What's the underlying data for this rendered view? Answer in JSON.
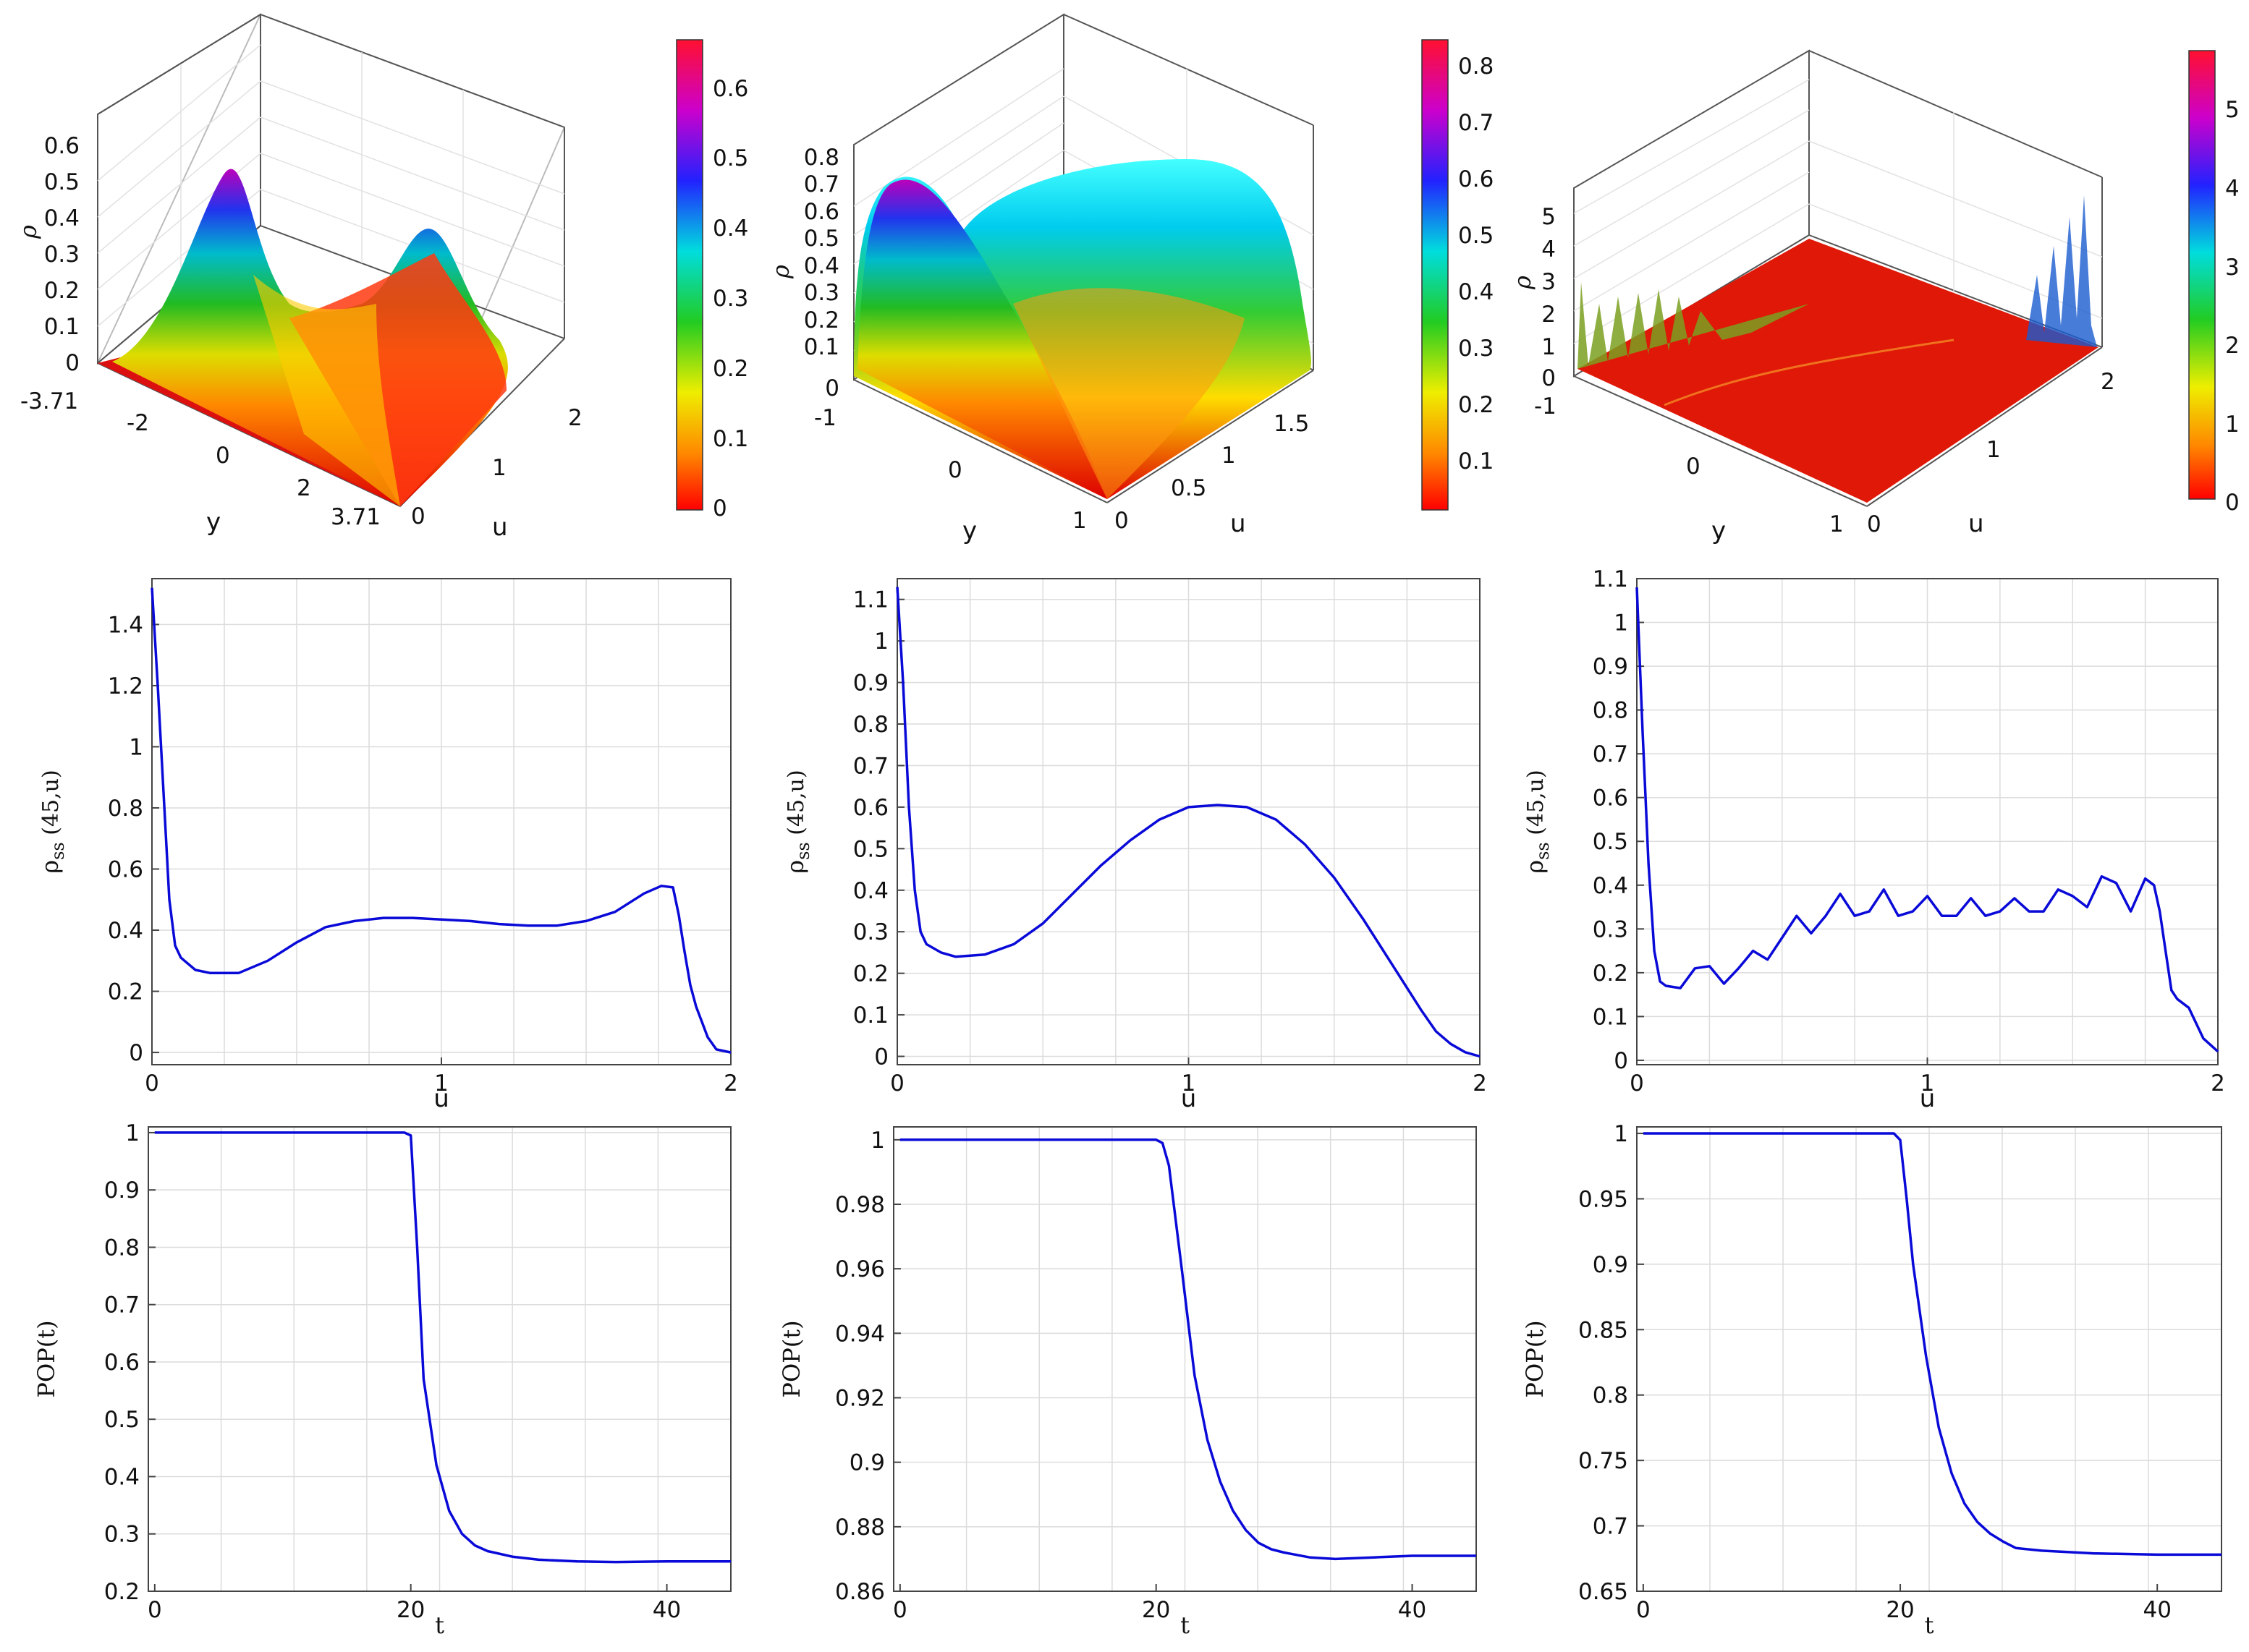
{
  "figure_colors": {
    "curve": "#0a0ad8",
    "grid": "#dcdcdc",
    "frame": "#444444"
  },
  "chart_data": [
    {
      "id": "r1c1",
      "type": "surface3d",
      "xlabel": "y",
      "ylabel": "u",
      "zlabel": "ρ",
      "x_ticks": [
        "-3.71",
        "-2",
        "0",
        "2",
        "3.71"
      ],
      "y_ticks": [
        "0",
        "1",
        "2"
      ],
      "z_ticks": [
        "0",
        "0.1",
        "0.2",
        "0.3",
        "0.4",
        "0.5",
        "0.6"
      ],
      "colorbar_ticks": [
        "0",
        "0.1",
        "0.2",
        "0.3",
        "0.4",
        "0.5",
        "0.6"
      ],
      "colorbar_max": 0.67
    },
    {
      "id": "r1c2",
      "type": "surface3d",
      "xlabel": "y",
      "ylabel": "u",
      "zlabel": "ρ",
      "x_ticks": [
        "-1",
        "0",
        "1"
      ],
      "y_ticks": [
        "0",
        "0.5",
        "1",
        "1.5"
      ],
      "z_ticks": [
        "0",
        "0.1",
        "0.2",
        "0.3",
        "0.4",
        "0.5",
        "0.6",
        "0.7",
        "0.8"
      ],
      "colorbar_ticks": [
        "0.1",
        "0.2",
        "0.3",
        "0.4",
        "0.5",
        "0.6",
        "0.7",
        "0.8"
      ],
      "colorbar_max": 0.84
    },
    {
      "id": "r1c3",
      "type": "surface3d",
      "xlabel": "y",
      "ylabel": "u",
      "zlabel": "ρ",
      "x_ticks": [
        "-1",
        "0",
        "1"
      ],
      "y_ticks": [
        "0",
        "1",
        "2"
      ],
      "z_ticks": [
        "0",
        "1",
        "2",
        "3",
        "4",
        "5"
      ],
      "colorbar_ticks": [
        "0",
        "1",
        "2",
        "3",
        "4",
        "5"
      ],
      "colorbar_max": 5.7
    },
    {
      "id": "r2c1",
      "type": "line",
      "xlabel": "u",
      "ylabel_main": "ρ",
      "ylabel_sub": "ss",
      "ylabel_rest": " (45,u)",
      "xlim": [
        0,
        2
      ],
      "ylim": [
        -0.04,
        1.55
      ],
      "x_ticks": [
        "0",
        "1",
        "2"
      ],
      "y_ticks": [
        "0",
        "0.2",
        "0.4",
        "0.6",
        "0.8",
        "1",
        "1.2",
        "1.4"
      ],
      "x": [
        0,
        0.02,
        0.04,
        0.06,
        0.08,
        0.1,
        0.15,
        0.2,
        0.3,
        0.4,
        0.5,
        0.6,
        0.7,
        0.8,
        0.9,
        1.0,
        1.1,
        1.2,
        1.3,
        1.4,
        1.5,
        1.6,
        1.7,
        1.76,
        1.8,
        1.82,
        1.84,
        1.86,
        1.88,
        1.9,
        1.92,
        1.95,
        2.0
      ],
      "y": [
        1.52,
        1.2,
        0.85,
        0.5,
        0.35,
        0.31,
        0.27,
        0.26,
        0.26,
        0.3,
        0.36,
        0.41,
        0.43,
        0.44,
        0.44,
        0.435,
        0.43,
        0.42,
        0.415,
        0.415,
        0.43,
        0.46,
        0.52,
        0.545,
        0.54,
        0.45,
        0.33,
        0.22,
        0.15,
        0.1,
        0.05,
        0.01,
        0.0
      ]
    },
    {
      "id": "r2c2",
      "type": "line",
      "xlabel": "u",
      "ylabel_main": "ρ",
      "ylabel_sub": "ss",
      "ylabel_rest": " (45,u)",
      "xlim": [
        0,
        2
      ],
      "ylim": [
        -0.02,
        1.15
      ],
      "x_ticks": [
        "0",
        "1",
        "2"
      ],
      "y_ticks": [
        "0",
        "0.1",
        "0.2",
        "0.3",
        "0.4",
        "0.5",
        "0.6",
        "0.7",
        "0.8",
        "0.9",
        "1",
        "1.1"
      ],
      "x": [
        0,
        0.02,
        0.04,
        0.06,
        0.08,
        0.1,
        0.15,
        0.2,
        0.3,
        0.4,
        0.5,
        0.6,
        0.7,
        0.8,
        0.9,
        1.0,
        1.1,
        1.2,
        1.3,
        1.4,
        1.5,
        1.6,
        1.7,
        1.8,
        1.85,
        1.9,
        1.95,
        2.0
      ],
      "y": [
        1.13,
        0.9,
        0.6,
        0.4,
        0.3,
        0.27,
        0.25,
        0.24,
        0.245,
        0.27,
        0.32,
        0.39,
        0.46,
        0.52,
        0.57,
        0.6,
        0.605,
        0.6,
        0.57,
        0.51,
        0.43,
        0.33,
        0.22,
        0.11,
        0.06,
        0.03,
        0.01,
        0.0
      ]
    },
    {
      "id": "r2c3",
      "type": "line",
      "xlabel": "u",
      "ylabel_main": "ρ",
      "ylabel_sub": "ss",
      "ylabel_rest": " (45,u)",
      "xlim": [
        0,
        2
      ],
      "ylim": [
        -0.01,
        1.1
      ],
      "x_ticks": [
        "0",
        "1",
        "2"
      ],
      "y_ticks": [
        "0",
        "0.1",
        "0.2",
        "0.3",
        "0.4",
        "0.5",
        "0.6",
        "0.7",
        "0.8",
        "0.9",
        "1",
        "1.1"
      ],
      "x": [
        0,
        0.02,
        0.04,
        0.06,
        0.08,
        0.1,
        0.15,
        0.2,
        0.25,
        0.3,
        0.35,
        0.4,
        0.45,
        0.5,
        0.55,
        0.6,
        0.65,
        0.7,
        0.75,
        0.8,
        0.85,
        0.9,
        0.95,
        1.0,
        1.05,
        1.1,
        1.15,
        1.2,
        1.25,
        1.3,
        1.35,
        1.4,
        1.45,
        1.5,
        1.55,
        1.6,
        1.65,
        1.7,
        1.75,
        1.78,
        1.8,
        1.82,
        1.84,
        1.86,
        1.9,
        1.95,
        2.0
      ],
      "y": [
        1.08,
        0.75,
        0.45,
        0.25,
        0.18,
        0.17,
        0.165,
        0.21,
        0.215,
        0.175,
        0.21,
        0.25,
        0.23,
        0.28,
        0.33,
        0.29,
        0.33,
        0.38,
        0.33,
        0.34,
        0.39,
        0.33,
        0.34,
        0.375,
        0.33,
        0.33,
        0.37,
        0.33,
        0.34,
        0.37,
        0.34,
        0.34,
        0.39,
        0.375,
        0.35,
        0.42,
        0.405,
        0.34,
        0.415,
        0.4,
        0.34,
        0.25,
        0.16,
        0.14,
        0.12,
        0.05,
        0.02
      ]
    },
    {
      "id": "r3c1",
      "type": "line",
      "xlabel": "t",
      "ylabel": "POP(t)",
      "xlim": [
        -0.5,
        45
      ],
      "ylim": [
        0.2,
        1.01
      ],
      "x_ticks": [
        "0",
        "20",
        "40"
      ],
      "x_tick_values": [
        0,
        20,
        40
      ],
      "y_ticks": [
        "0.2",
        "0.3",
        "0.4",
        "0.5",
        "0.6",
        "0.7",
        "0.8",
        "0.9",
        "1"
      ],
      "x": [
        0,
        5,
        10,
        15,
        19.5,
        20,
        20.5,
        21,
        22,
        23,
        24,
        25,
        26,
        28,
        30,
        33,
        36,
        40,
        45
      ],
      "y": [
        1.0,
        1.0,
        1.0,
        1.0,
        1.0,
        0.995,
        0.8,
        0.57,
        0.42,
        0.34,
        0.3,
        0.28,
        0.27,
        0.26,
        0.255,
        0.252,
        0.251,
        0.252,
        0.252
      ]
    },
    {
      "id": "r3c2",
      "type": "line",
      "xlabel": "t",
      "ylabel": "POP(t)",
      "xlim": [
        -0.5,
        45
      ],
      "ylim": [
        0.86,
        1.004
      ],
      "x_ticks": [
        "0",
        "20",
        "40"
      ],
      "x_tick_values": [
        0,
        20,
        40
      ],
      "y_ticks": [
        "0.86",
        "0.88",
        "0.9",
        "0.92",
        "0.94",
        "0.96",
        "0.98",
        "1"
      ],
      "x": [
        0,
        5,
        10,
        15,
        20,
        20.5,
        21,
        22,
        23,
        24,
        25,
        26,
        27,
        28,
        29,
        30,
        32,
        34,
        37,
        40,
        45
      ],
      "y": [
        1.0,
        1.0,
        1.0,
        1.0,
        1.0,
        0.999,
        0.992,
        0.96,
        0.927,
        0.907,
        0.894,
        0.885,
        0.879,
        0.875,
        0.873,
        0.872,
        0.8705,
        0.87,
        0.8705,
        0.871,
        0.871
      ]
    },
    {
      "id": "r3c3",
      "type": "line",
      "xlabel": "t",
      "ylabel": "POP(t)",
      "xlim": [
        -0.5,
        45
      ],
      "ylim": [
        0.65,
        1.005
      ],
      "x_ticks": [
        "0",
        "20",
        "40"
      ],
      "x_tick_values": [
        0,
        20,
        40
      ],
      "y_ticks": [
        "0.65",
        "0.7",
        "0.75",
        "0.8",
        "0.85",
        "0.9",
        "0.95",
        "1"
      ],
      "x": [
        0,
        5,
        10,
        15,
        19.5,
        20,
        20.5,
        21,
        22,
        23,
        24,
        25,
        26,
        27,
        28,
        29,
        31,
        35,
        40,
        45
      ],
      "y": [
        1.0,
        1.0,
        1.0,
        1.0,
        1.0,
        0.995,
        0.95,
        0.9,
        0.83,
        0.775,
        0.74,
        0.717,
        0.703,
        0.694,
        0.688,
        0.683,
        0.681,
        0.679,
        0.678,
        0.678
      ]
    }
  ]
}
